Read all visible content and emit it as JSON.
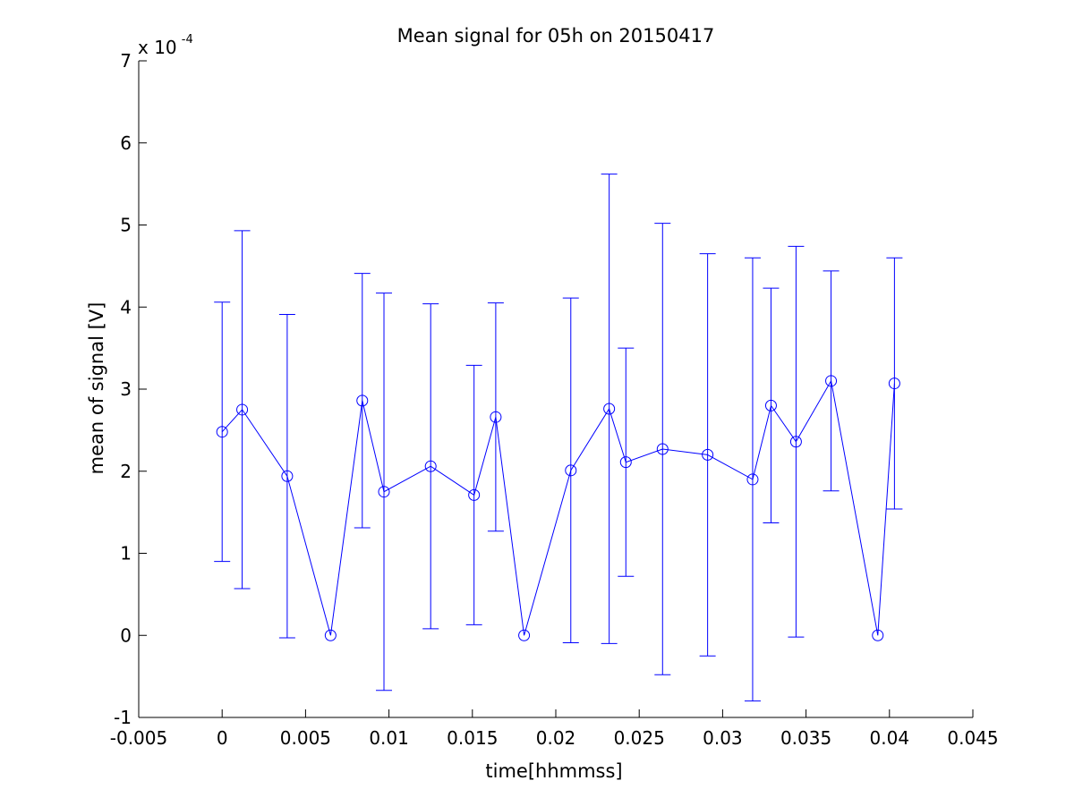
{
  "chart_data": {
    "type": "line",
    "title": "Mean signal for 05h on 20150417",
    "xlabel": "time[hhmmss]",
    "ylabel": "mean of signal [V]",
    "y_multiplier": {
      "base": "x 10",
      "exponent": "-4"
    },
    "xlim": [
      -0.005,
      0.045
    ],
    "ylim": [
      -1,
      7
    ],
    "x_ticks": [
      -0.005,
      0,
      0.005,
      0.01,
      0.015,
      0.02,
      0.025,
      0.03,
      0.035,
      0.04,
      0.045
    ],
    "x_tick_labels": [
      "-0.005",
      "0",
      "0.005",
      "0.01",
      "0.015",
      "0.02",
      "0.025",
      "0.03",
      "0.035",
      "0.04",
      "0.045"
    ],
    "y_ticks": [
      -1,
      0,
      1,
      2,
      3,
      4,
      5,
      6,
      7
    ],
    "y_tick_labels": [
      "-1",
      "0",
      "1",
      "2",
      "3",
      "4",
      "5",
      "6",
      "7"
    ],
    "grid": false,
    "marker": "circle",
    "color": "#0000ff",
    "series": [
      {
        "x": [
          0.0,
          0.0012,
          0.0039,
          0.0065,
          0.0084,
          0.0097,
          0.0125,
          0.0151,
          0.0164,
          0.0181,
          0.0209,
          0.0232,
          0.0242,
          0.0264,
          0.0291,
          0.0318,
          0.0329,
          0.0344,
          0.0365,
          0.0393,
          0.0403
        ],
        "y": [
          2.48,
          2.75,
          1.94,
          0.0,
          2.86,
          1.75,
          2.06,
          1.71,
          2.66,
          0.0,
          2.01,
          2.76,
          2.11,
          2.27,
          2.2,
          1.9,
          2.8,
          2.36,
          3.1,
          0.0,
          3.07
        ],
        "error": [
          1.58,
          2.18,
          1.97,
          0.0,
          1.55,
          2.42,
          1.98,
          1.58,
          1.39,
          0.0,
          2.1,
          2.86,
          1.39,
          2.75,
          2.45,
          2.7,
          1.43,
          2.38,
          1.34,
          0.0,
          1.53
        ]
      }
    ]
  }
}
